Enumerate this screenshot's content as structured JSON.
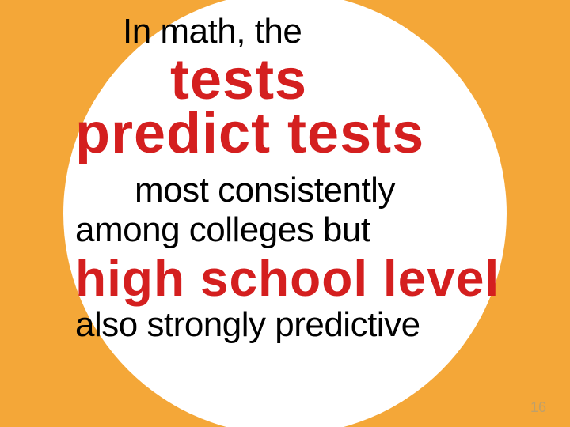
{
  "slide": {
    "background_color": "#f4a738",
    "circle_color": "#ffffff",
    "text_color_regular": "#000000",
    "text_color_emphasis": "#d41f1f",
    "regular_fontsize": 44,
    "emphasis_fontsize_large": 72,
    "emphasis_fontsize_medium": 64,
    "page_number_fontsize": 18,
    "page_number_color": "#bfa06a",
    "lines": {
      "line1": "In math, the",
      "line2": "tests",
      "line3": "predict tests",
      "line4": "most consistently",
      "line5": "among colleges but",
      "line6": "high school level",
      "line7": "also strongly predictive"
    },
    "page_number": "16"
  }
}
